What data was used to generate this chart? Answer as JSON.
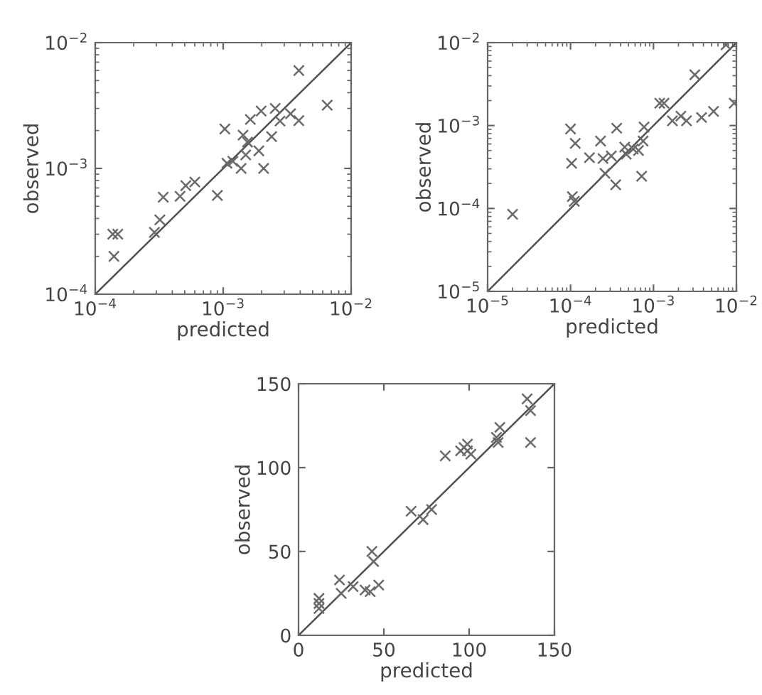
{
  "chart_data": [
    {
      "type": "scatter",
      "xlabel": "predicted",
      "ylabel": "observed",
      "log": "xy",
      "grid": false,
      "xlim": [
        0.0001,
        0.01
      ],
      "ylim": [
        0.0001,
        0.01
      ],
      "xticks": [
        {
          "value": 0.0001,
          "label": "10$^{−4}$"
        },
        {
          "value": 0.001,
          "label": "10$^{−3}$"
        },
        {
          "value": 0.01,
          "label": "10$^{−2}$"
        }
      ],
      "yticks": [
        {
          "value": 0.0001,
          "label": "10$^{−4}$"
        },
        {
          "value": 0.001,
          "label": "10$^{−3}$"
        },
        {
          "value": 0.01,
          "label": "10$^{−2}$"
        }
      ],
      "series": [
        {
          "color": "#6a6a6a",
          "marker": "cross",
          "x": [
            0.000137,
            0.00015,
            0.00014,
            0.00029,
            0.00032,
            0.00034,
            0.00046,
            0.00051,
            0.0006,
            0.0009,
            0.00103,
            0.00107,
            0.00119,
            0.00138,
            0.00143,
            0.0015,
            0.00155,
            0.00163,
            0.00198,
            0.0019,
            0.00207,
            0.00239,
            0.00255,
            0.00278,
            0.00336,
            0.0039,
            0.0039,
            0.0065
          ],
          "values": [
            0.0003,
            0.0003,
            0.0002,
            0.00031,
            0.00039,
            0.00059,
            0.0006,
            0.00073,
            0.00078,
            0.00061,
            0.00206,
            0.0011,
            0.00114,
            0.001,
            0.00184,
            0.00128,
            0.00162,
            0.00245,
            0.00286,
            0.00138,
            0.001,
            0.00179,
            0.003,
            0.00238,
            0.00272,
            0.0024,
            0.006,
            0.00318
          ]
        },
        {
          "type": "line",
          "color": "#505050",
          "x": [
            0.0001,
            0.01
          ],
          "values": [
            0.0001,
            0.01
          ]
        }
      ]
    },
    {
      "type": "scatter",
      "xlabel": "predicted",
      "ylabel": "observed",
      "log": "xy",
      "grid": false,
      "xlim": [
        1e-05,
        0.01
      ],
      "ylim": [
        1e-05,
        0.01
      ],
      "xticks": [
        {
          "value": 1e-05,
          "label": "10$^{−5}$"
        },
        {
          "value": 0.0001,
          "label": "10$^{−4}$"
        },
        {
          "value": 0.001,
          "label": "10$^{−3}$"
        },
        {
          "value": 0.01,
          "label": "10$^{−2}$"
        }
      ],
      "yticks": [
        {
          "value": 1e-05,
          "label": "10$^{−5}$"
        },
        {
          "value": 0.0001,
          "label": "10$^{−4}$"
        },
        {
          "value": 0.001,
          "label": "10$^{−3}$"
        },
        {
          "value": 0.01,
          "label": "10$^{−2}$"
        }
      ],
      "series": [
        {
          "color": "#6a6a6a",
          "marker": "cross",
          "x": [
            2e-05,
            0.0001,
            0.000114,
            0.000103,
            0.000105,
            0.000111,
            0.000169,
            0.00023,
            0.000246,
            0.00026,
            0.00031,
            0.00035,
            0.00036,
            0.00045,
            0.00047,
            0.00057,
            0.00066,
            0.00075,
            0.00077,
            0.00072,
            0.00119,
            0.00134,
            0.00169,
            0.00214,
            0.0025,
            0.00315,
            0.0038,
            0.0053,
            0.0075,
            0.0094
          ],
          "values": [
            8.5e-05,
            0.00091,
            0.00061,
            0.00035,
            0.000139,
            0.000122,
            0.00041,
            0.00065,
            0.0004,
            0.000265,
            0.00043,
            0.000193,
            0.00093,
            0.00055,
            0.00045,
            0.00052,
            0.0005,
            0.00065,
            0.00096,
            0.000245,
            0.00186,
            0.00186,
            0.00114,
            0.0013,
            0.00114,
            0.0041,
            0.00125,
            0.00148,
            0.0094,
            0.00186
          ]
        },
        {
          "type": "line",
          "color": "#505050",
          "x": [
            1e-05,
            0.01
          ],
          "values": [
            1e-05,
            0.01
          ]
        }
      ]
    },
    {
      "type": "scatter",
      "xlabel": "predicted",
      "ylabel": "observed",
      "grid": false,
      "xlim": [
        0,
        150
      ],
      "ylim": [
        0,
        150
      ],
      "xticks": [
        0,
        50,
        100,
        150
      ],
      "yticks": [
        0,
        50,
        100,
        150
      ],
      "series": [
        {
          "color": "#6a6a6a",
          "marker": "cross",
          "x": [
            12,
            12,
            12,
            24,
            25,
            32,
            39,
            42,
            43,
            44,
            47,
            66,
            73,
            78,
            86,
            95,
            97,
            99,
            99,
            101,
            116,
            117,
            118,
            134,
            136,
            136
          ],
          "values": [
            22,
            19,
            16,
            33,
            25,
            29,
            27,
            26,
            50,
            44,
            30,
            74,
            69,
            75,
            107,
            110,
            112,
            114,
            110,
            108,
            118,
            115,
            124,
            141,
            134,
            115
          ]
        },
        {
          "type": "line",
          "color": "#505050",
          "x": [
            0,
            150
          ],
          "values": [
            0,
            150
          ]
        }
      ]
    }
  ]
}
